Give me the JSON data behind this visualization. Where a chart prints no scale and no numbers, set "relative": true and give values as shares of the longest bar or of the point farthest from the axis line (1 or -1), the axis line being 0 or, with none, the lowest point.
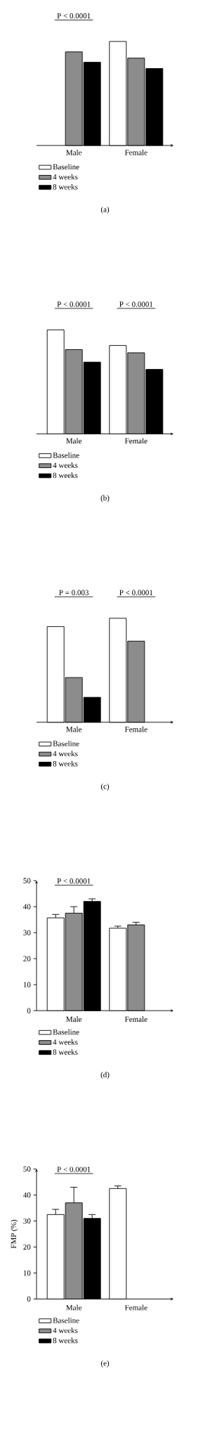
{
  "chart_data": [
    {
      "type": "bar",
      "relative": true,
      "categories": [
        "Male",
        "Female"
      ],
      "legend": "bottom",
      "series": [
        {
          "name": "Baseline",
          "color": "#ffffff",
          "values": [
            null,
            1.0
          ]
        },
        {
          "name": "4 weeks",
          "color": "#8c8c8c",
          "values": [
            0.9,
            0.84
          ]
        },
        {
          "name": "8 weeks",
          "color": "#000000",
          "values": [
            0.8,
            0.74
          ]
        }
      ],
      "annotations": [
        "P < 0.0001",
        "(a)"
      ]
    },
    {
      "type": "bar",
      "relative": true,
      "categories": [
        "Male",
        "Female"
      ],
      "legend": "bottom",
      "series": [
        {
          "name": "Baseline",
          "color": "#ffffff",
          "values": [
            1.0,
            0.85
          ]
        },
        {
          "name": "4 weeks",
          "color": "#8c8c8c",
          "values": [
            0.81,
            0.78
          ]
        },
        {
          "name": "8 weeks",
          "color": "#000000",
          "values": [
            0.69,
            0.62
          ]
        }
      ],
      "annotations": [
        "P < 0.0001",
        "P < 0.0001",
        "(b)"
      ]
    },
    {
      "type": "bar",
      "relative": true,
      "categories": [
        "Male",
        "Female"
      ],
      "legend": "bottom",
      "series": [
        {
          "name": "Baseline",
          "color": "#ffffff",
          "values": [
            0.92,
            1.0
          ]
        },
        {
          "name": "4 weeks",
          "color": "#8c8c8c",
          "values": [
            0.43,
            0.78
          ]
        },
        {
          "name": "8 weeks",
          "color": "#000000",
          "values": [
            0.24,
            null
          ]
        }
      ],
      "annotations": [
        "P = 0.003",
        "P < 0.0001",
        "(c)"
      ]
    },
    {
      "type": "bar",
      "categories": [
        "Male",
        "Female"
      ],
      "legend": "bottom",
      "ylim": [
        0,
        50
      ],
      "yticks": [
        0,
        10,
        20,
        30,
        40,
        50
      ],
      "series": [
        {
          "name": "Baseline",
          "color": "#ffffff",
          "values": [
            35.7,
            31.7
          ],
          "errors": [
            1.3,
            0.8
          ]
        },
        {
          "name": "4 weeks",
          "color": "#8c8c8c",
          "values": [
            37.5,
            33
          ],
          "errors": [
            2.5,
            1
          ]
        },
        {
          "name": "8 weeks",
          "color": "#000000",
          "values": [
            42,
            null
          ],
          "errors": [
            1,
            null
          ]
        }
      ],
      "annotations": [
        "P < 0.0001",
        "(d)"
      ]
    },
    {
      "type": "bar",
      "categories": [
        "Male",
        "Female"
      ],
      "legend": "bottom",
      "ylim": [
        0,
        50
      ],
      "yticks": [
        0,
        10,
        20,
        30,
        40,
        50
      ],
      "ylabel": "FMP (%)",
      "series": [
        {
          "name": "Baseline",
          "color": "#ffffff",
          "values": [
            32.5,
            42.5
          ],
          "errors": [
            2,
            1
          ]
        },
        {
          "name": "4 weeks",
          "color": "#8c8c8c",
          "values": [
            37,
            null
          ],
          "errors": [
            6,
            null
          ]
        },
        {
          "name": "8 weeks",
          "color": "#000000",
          "values": [
            31,
            null
          ],
          "errors": [
            1.5,
            null
          ]
        }
      ],
      "annotations": [
        "P < 0.0001",
        "(e)"
      ]
    }
  ]
}
